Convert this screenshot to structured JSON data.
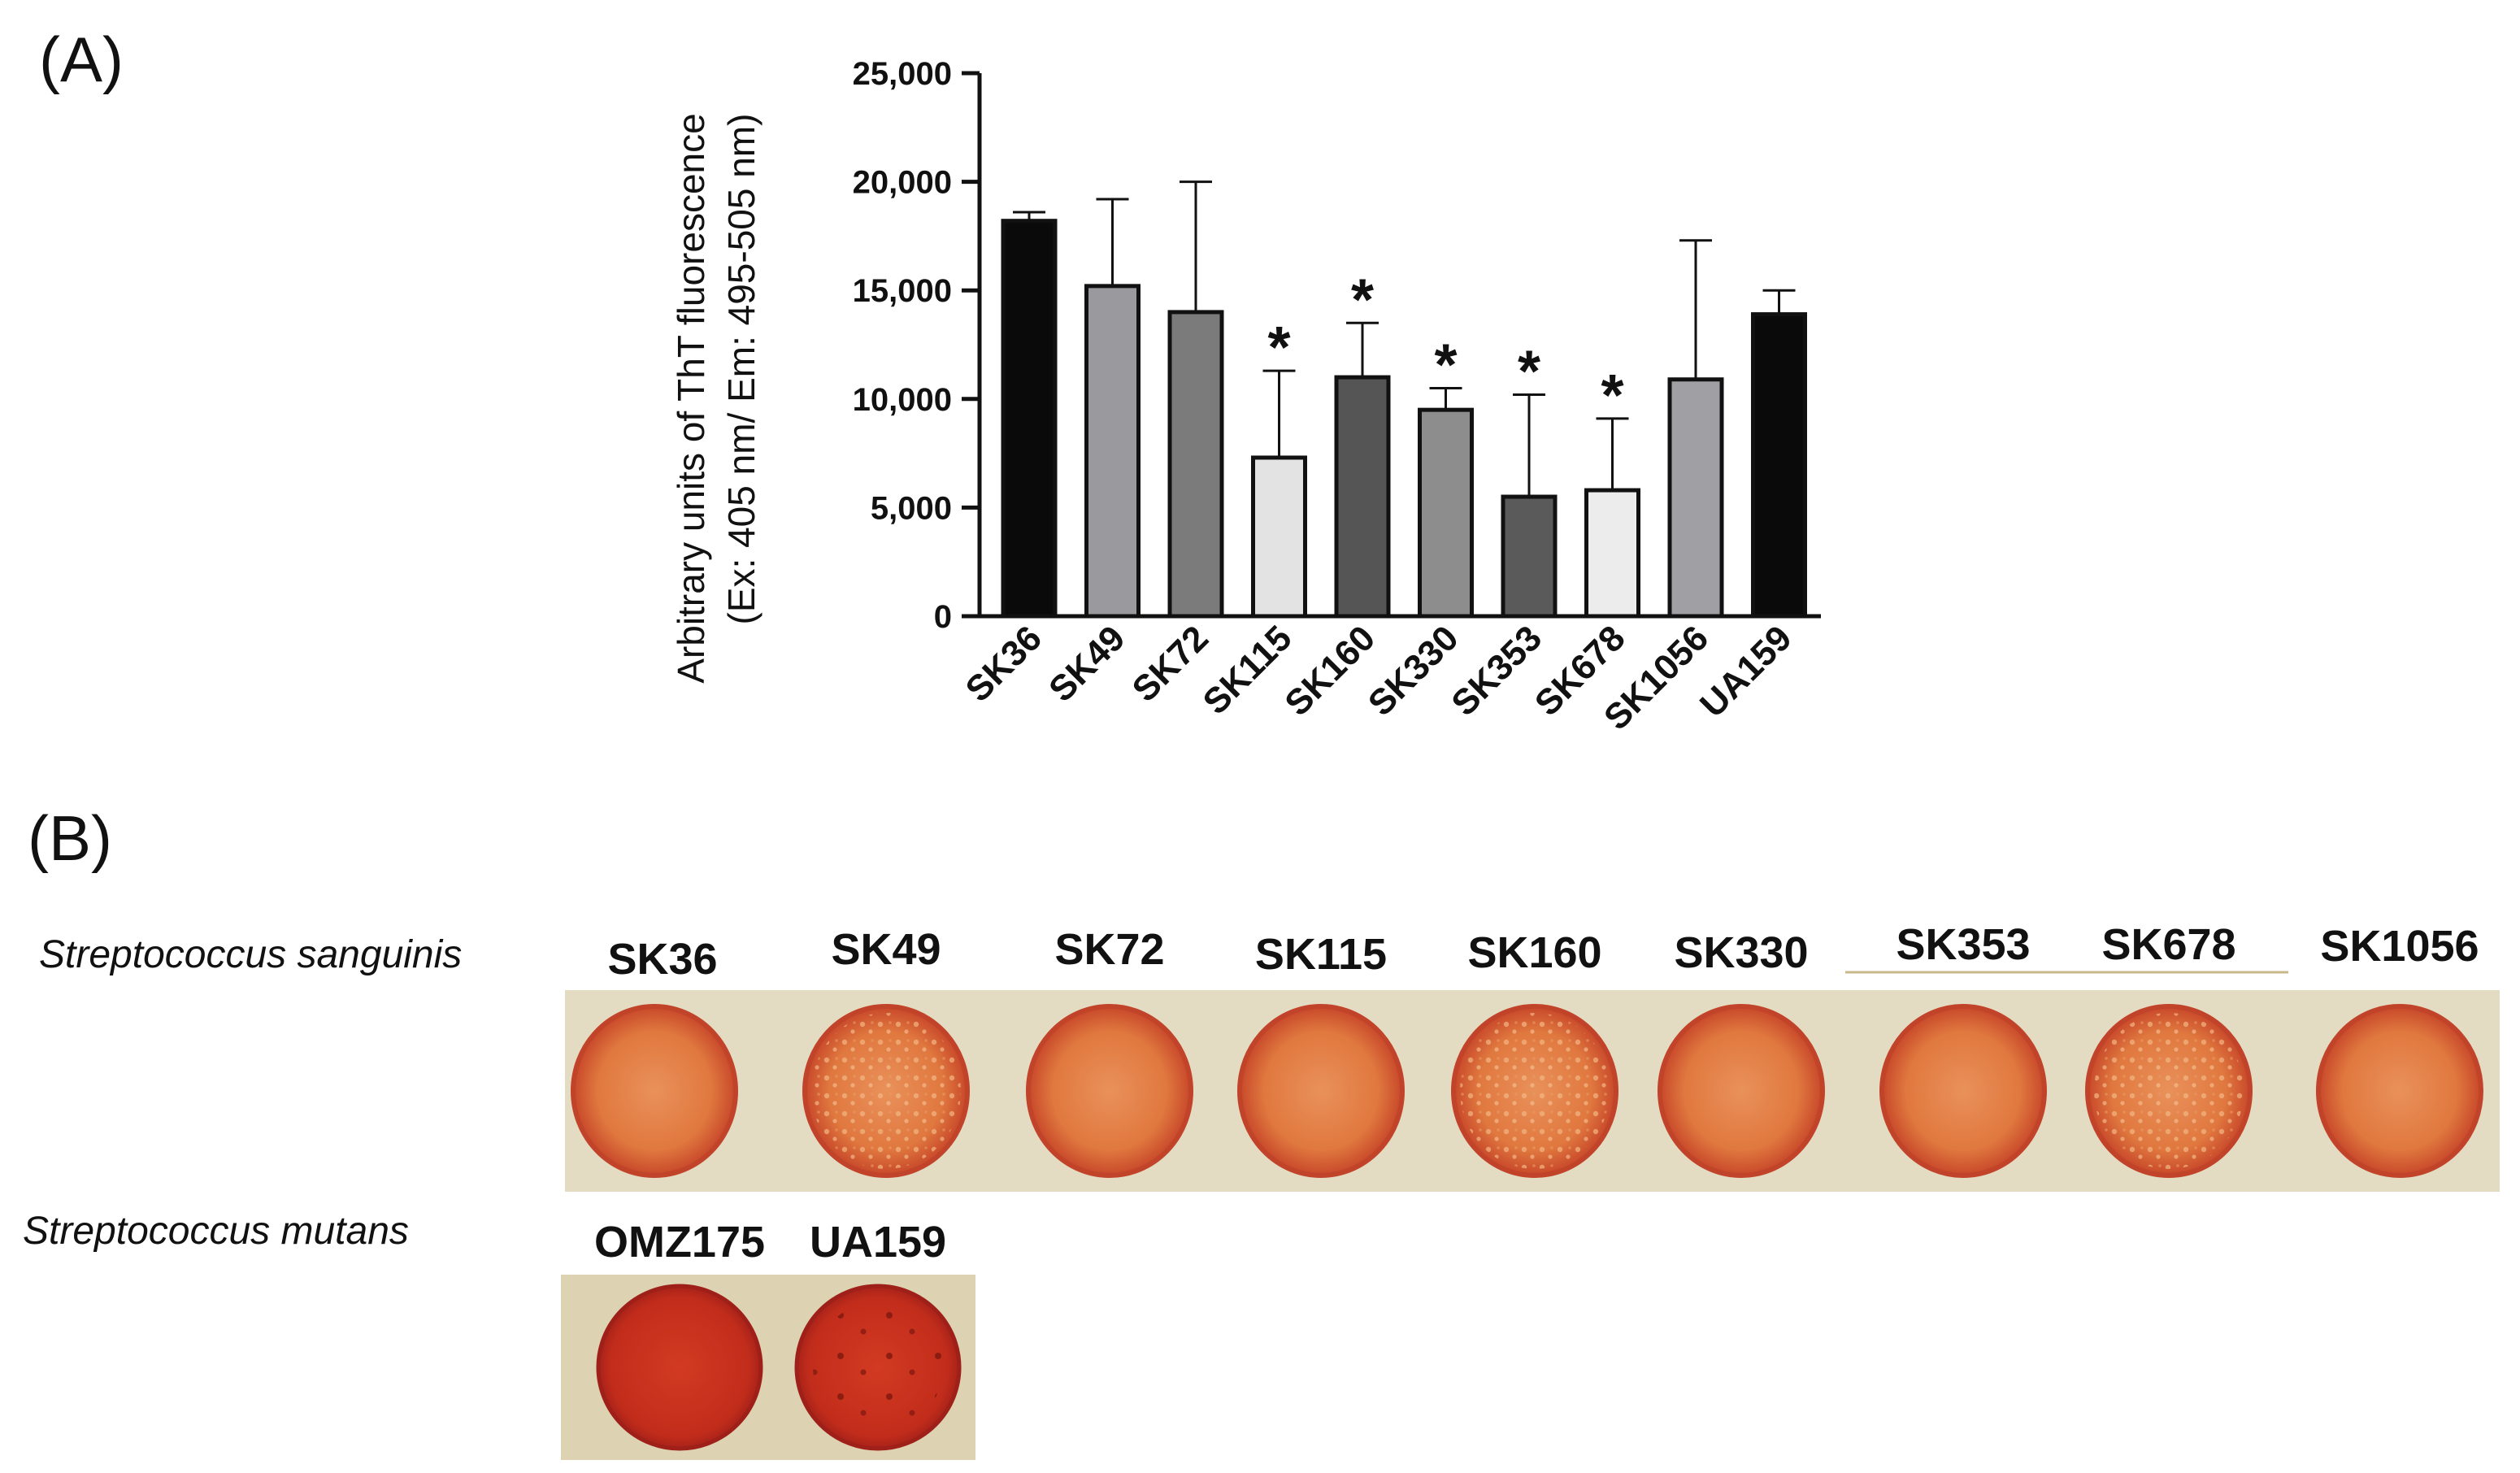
{
  "panel_a_label": "(A)",
  "panel_b_label": "(B)",
  "chart_data": {
    "type": "bar",
    "ylabel_line1": "Arbitrary units of ThT fluorescence",
    "ylabel_line2": "(Ex: 405 nm/ Em: 495-505 nm)",
    "ylim": [
      0,
      25000
    ],
    "yticks": [
      0,
      5000,
      10000,
      15000,
      20000,
      25000
    ],
    "ytick_labels": [
      "0",
      "5,000",
      "10,000",
      "15,000",
      "20,000",
      "25,000"
    ],
    "categories": [
      "SK36",
      "SK49",
      "SK72",
      "SK115",
      "SK160",
      "SK330",
      "SK353",
      "SK678",
      "SK1056",
      "UA159"
    ],
    "values": [
      18200,
      15200,
      14000,
      7300,
      11000,
      9500,
      5500,
      5800,
      10900,
      13900
    ],
    "errors": [
      400,
      4000,
      6000,
      4000,
      2500,
      1000,
      4700,
      3300,
      6400,
      1100
    ],
    "significant": [
      false,
      false,
      false,
      true,
      true,
      true,
      true,
      true,
      false,
      false
    ],
    "significance_mark": "*",
    "bar_colors": [
      "#0a0a0a",
      "#9a9a9e",
      "#7b7b7b",
      "#e3e3e3",
      "#555555",
      "#8d8d8d",
      "#5a5a5a",
      "#ececec",
      "#a0a0a4",
      "#0a0a0a"
    ],
    "grid": false
  },
  "panel_b": {
    "row1_species": "Streptococcus sanguinis",
    "row1_strains": [
      "SK36",
      "SK49",
      "SK72",
      "SK115",
      "SK160",
      "SK330",
      "SK353",
      "SK678",
      "SK1056"
    ],
    "row2_species": "Streptococcus mutans",
    "row2_strains": [
      "OMZ175",
      "UA159"
    ]
  }
}
